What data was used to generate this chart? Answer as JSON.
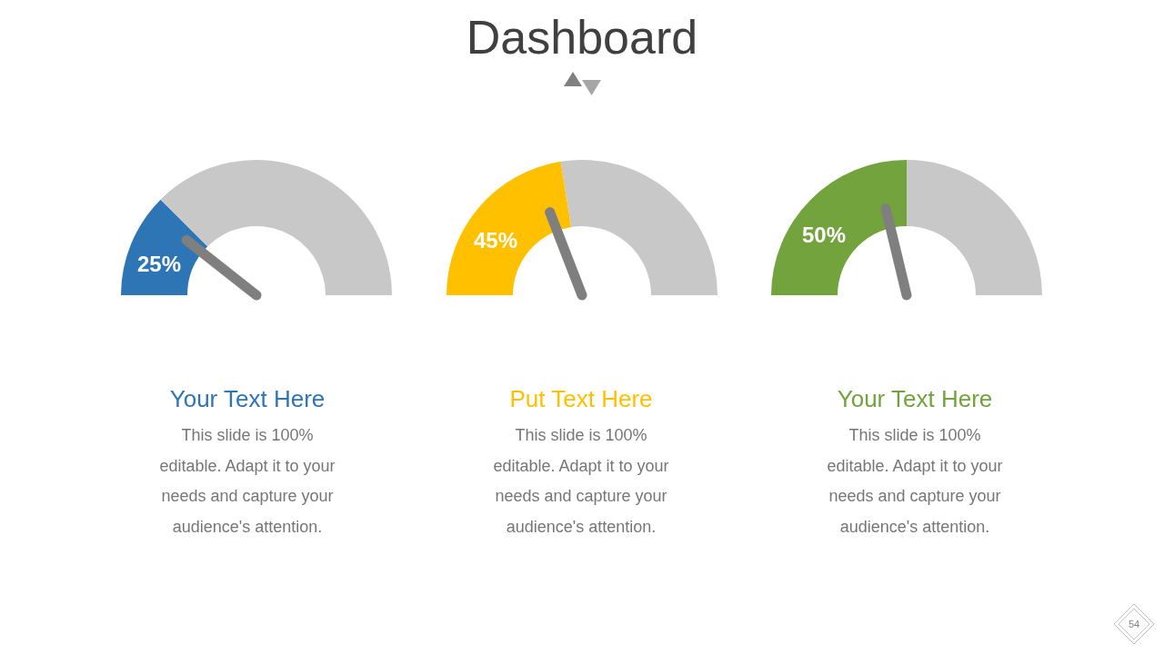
{
  "chart_data": [
    {
      "type": "other",
      "title": "Dashboard",
      "annotations": [
        "54"
      ]
    },
    {
      "type": "donut",
      "categories": [
        "25%",
        null
      ],
      "values": [
        25,
        75
      ],
      "colors": [
        "#2e75b6",
        "#c8c8c8"
      ],
      "needle": "25%",
      "title": "Your Text Here",
      "annotations": [
        "This slide is 100% editable. Adapt it to your needs and capture your audience's attention."
      ]
    },
    {
      "type": "donut",
      "categories": [
        "45%",
        null
      ],
      "values": [
        45,
        55
      ],
      "colors": [
        "#ffc000",
        "#c8c8c8"
      ],
      "needle": "45%",
      "title": "Put Text Here",
      "annotations": [
        "This slide is 100% editable. Adapt it to your needs and capture your audience's attention."
      ]
    },
    {
      "type": "donut",
      "categories": [
        "50%",
        null
      ],
      "values": [
        50,
        50
      ],
      "colors": [
        "#72a33c",
        "#c8c8c8"
      ],
      "needle": "50%",
      "title": "Your Text Here",
      "annotations": [
        "This slide is 100% editable. Adapt it to your needs and capture your audience's attention."
      ]
    }
  ]
}
